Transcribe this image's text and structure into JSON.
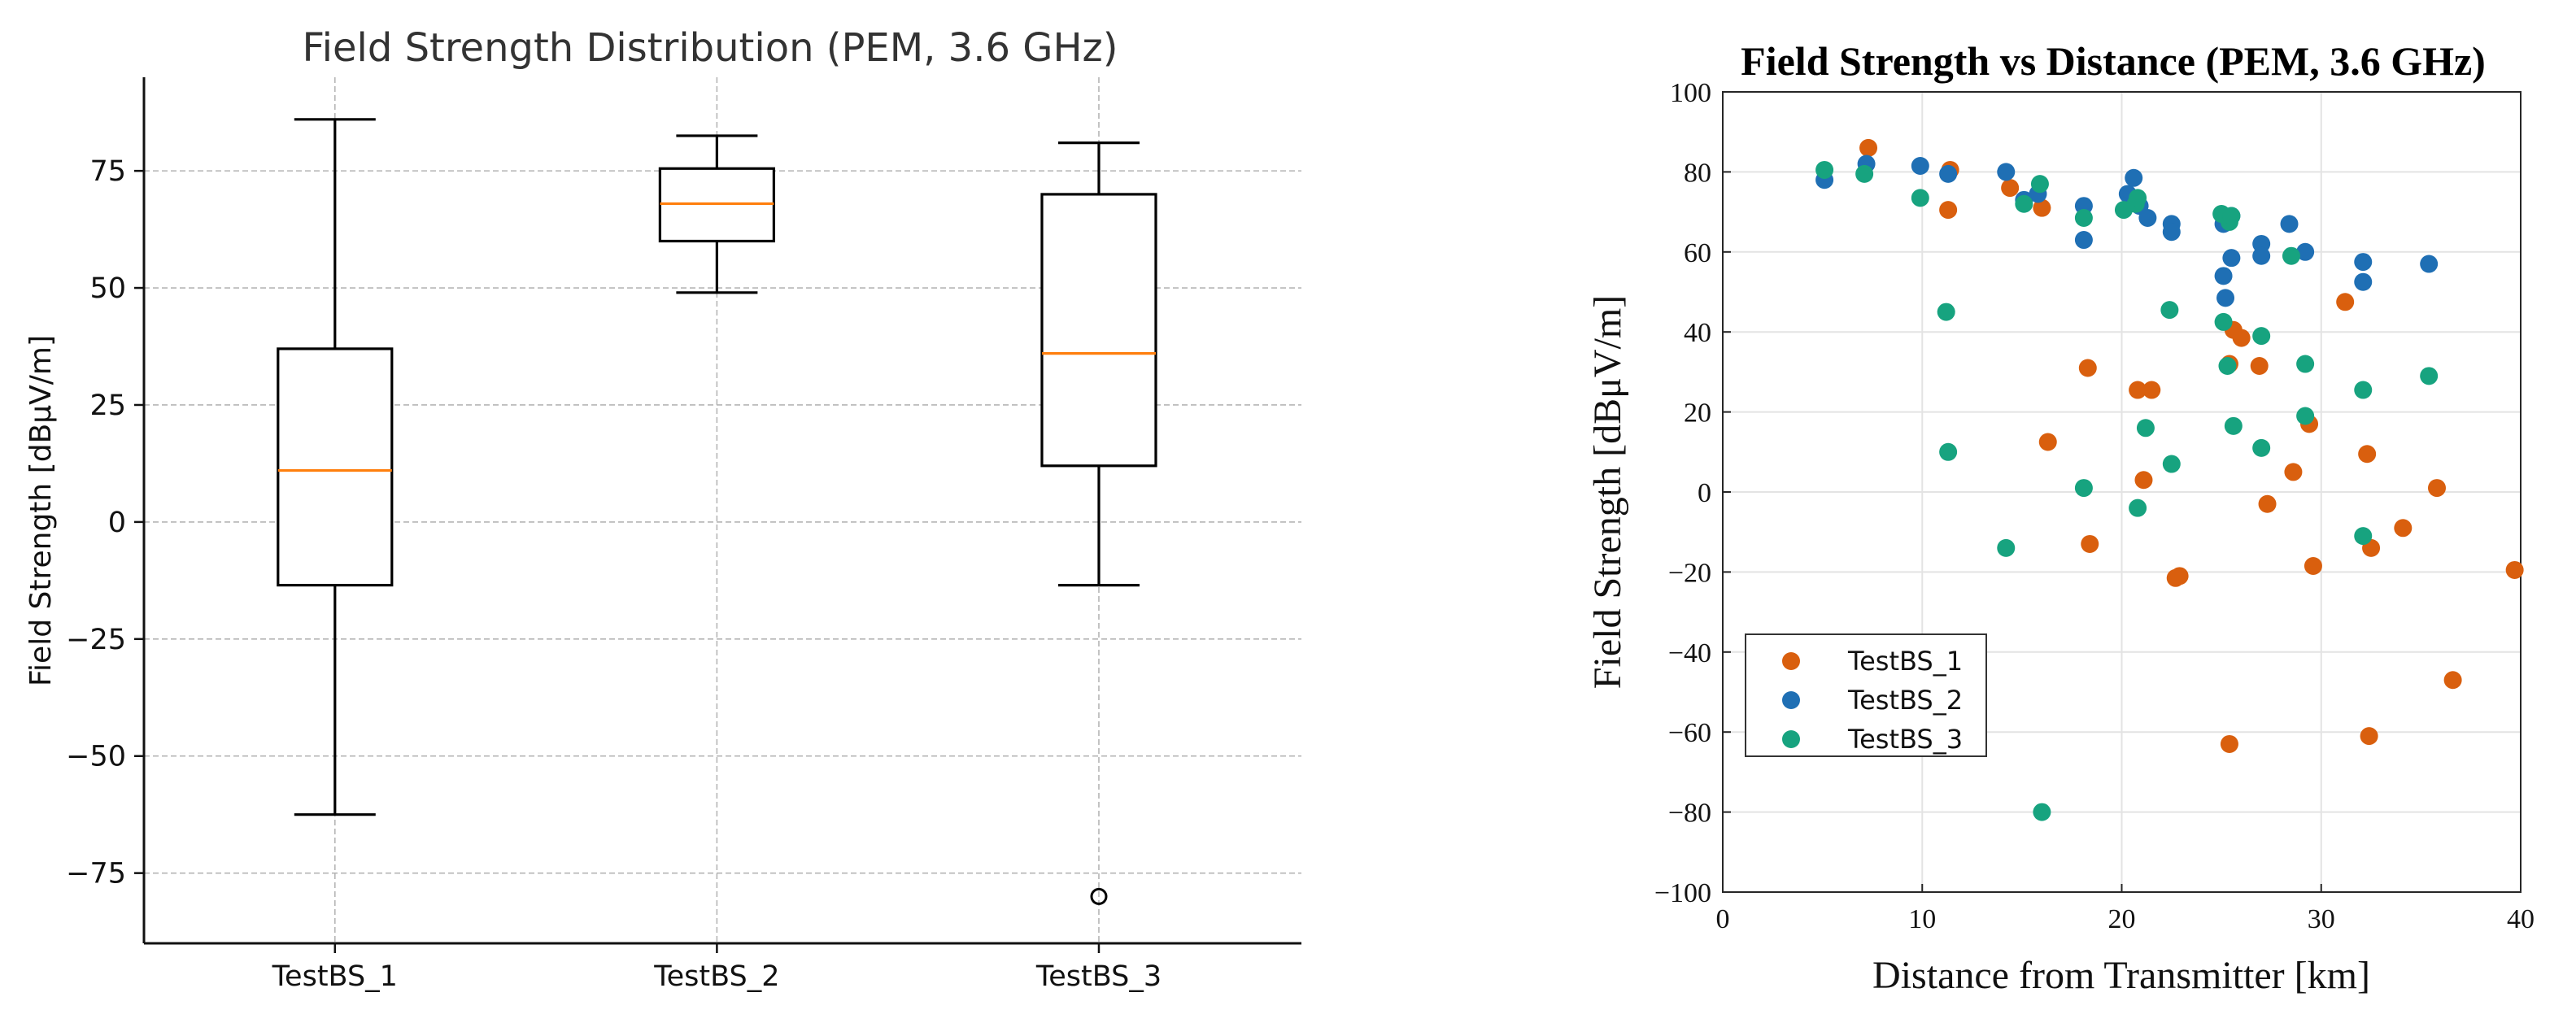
{
  "chart_data": [
    {
      "type": "box",
      "title": "Field Strength Distribution (PEM, 3.6 GHz)",
      "xlabel": "",
      "ylabel": "Field Strength [dBµV/m]",
      "ylim": [
        -90,
        95
      ],
      "yticks": [
        -75,
        -50,
        -25,
        0,
        25,
        50,
        75
      ],
      "ytick_labels": [
        "−75",
        "−50",
        "−25",
        "0",
        "25",
        "50",
        "75"
      ],
      "grid": true,
      "categories": [
        "TestBS_1",
        "TestBS_2",
        "TestBS_3"
      ],
      "boxes": [
        {
          "name": "TestBS_1",
          "whisker_low": -62.5,
          "q1": -13.5,
          "median": 11,
          "q3": 37,
          "whisker_high": 86,
          "outliers": []
        },
        {
          "name": "TestBS_2",
          "whisker_low": 49,
          "q1": 60,
          "median": 68,
          "q3": 75.5,
          "whisker_high": 82.5,
          "outliers": []
        },
        {
          "name": "TestBS_3",
          "whisker_low": -13.5,
          "q1": 12,
          "median": 36,
          "q3": 70,
          "whisker_high": 81,
          "outliers": [
            -80
          ]
        }
      ]
    },
    {
      "type": "scatter",
      "title": "Field Strength vs Distance (PEM, 3.6 GHz)",
      "xlabel": "Distance from Transmitter [km]",
      "ylabel": "Field Strength [dBμV/m]",
      "xlim": [
        0,
        40
      ],
      "ylim": [
        -100,
        100
      ],
      "xticks": [
        0,
        10,
        20,
        30,
        40
      ],
      "yticks": [
        -100,
        -80,
        -60,
        -40,
        -20,
        0,
        20,
        40,
        60,
        80,
        100
      ],
      "ytick_labels": [
        "−100",
        "−80",
        "−60",
        "−40",
        "−20",
        "0",
        "20",
        "40",
        "60",
        "80",
        "100"
      ],
      "grid": true,
      "legend_position": "lower-left",
      "series": [
        {
          "name": "TestBS_1",
          "color": "#D95F0E",
          "points": [
            [
              7.3,
              86
            ],
            [
              11.4,
              80.5
            ],
            [
              11.3,
              70.5
            ],
            [
              14.4,
              76
            ],
            [
              16,
              71
            ],
            [
              18.3,
              31
            ],
            [
              16.3,
              12.5
            ],
            [
              18.4,
              -13
            ],
            [
              20.8,
              25.5
            ],
            [
              21.5,
              25.5
            ],
            [
              21.1,
              3
            ],
            [
              22.7,
              -21.5
            ],
            [
              22.9,
              -21
            ],
            [
              25.4,
              32
            ],
            [
              25.6,
              40.5
            ],
            [
              26,
              38.5
            ],
            [
              26.9,
              31.5
            ],
            [
              25.4,
              -63
            ],
            [
              27.3,
              -3
            ],
            [
              28.6,
              5
            ],
            [
              29.4,
              17
            ],
            [
              29.6,
              -18.5
            ],
            [
              31.2,
              47.5
            ],
            [
              32.3,
              9.5
            ],
            [
              32.5,
              -14
            ],
            [
              32.4,
              -61
            ],
            [
              34.1,
              -9
            ],
            [
              35.8,
              1
            ],
            [
              36.6,
              -47
            ],
            [
              39.7,
              -19.5
            ]
          ]
        },
        {
          "name": "TestBS_2",
          "color": "#1F6FB4",
          "points": [
            [
              5.1,
              78
            ],
            [
              7.2,
              82
            ],
            [
              9.9,
              81.5
            ],
            [
              11.3,
              79.5
            ],
            [
              14.2,
              80
            ],
            [
              15.1,
              73
            ],
            [
              15.8,
              74.5
            ],
            [
              18.1,
              71.5
            ],
            [
              18.1,
              63
            ],
            [
              20.3,
              74.5
            ],
            [
              20.6,
              78.5
            ],
            [
              20.9,
              71.5
            ],
            [
              21.3,
              68.5
            ],
            [
              22.5,
              67
            ],
            [
              22.5,
              65
            ],
            [
              25.1,
              67
            ],
            [
              25.1,
              54
            ],
            [
              25.2,
              48.5
            ],
            [
              25.5,
              58.5
            ],
            [
              25.5,
              69
            ],
            [
              27,
              62
            ],
            [
              27,
              59
            ],
            [
              28.4,
              67
            ],
            [
              29.2,
              60
            ],
            [
              32.1,
              57.5
            ],
            [
              32.1,
              52.5
            ],
            [
              35.4,
              57
            ]
          ]
        },
        {
          "name": "TestBS_3",
          "color": "#17A37F",
          "points": [
            [
              5.1,
              80.5
            ],
            [
              7.1,
              79.5
            ],
            [
              9.9,
              73.5
            ],
            [
              11.2,
              45
            ],
            [
              11.3,
              10
            ],
            [
              14.2,
              -14
            ],
            [
              15.1,
              72
            ],
            [
              15.9,
              77
            ],
            [
              16,
              -80
            ],
            [
              18.1,
              68.5
            ],
            [
              18.1,
              1
            ],
            [
              20.1,
              70.5
            ],
            [
              20.7,
              72
            ],
            [
              20.8,
              73.5
            ],
            [
              20.8,
              -4
            ],
            [
              21.2,
              16
            ],
            [
              22.4,
              45.5
            ],
            [
              22.5,
              7
            ],
            [
              25,
              69.5
            ],
            [
              25.1,
              42.5
            ],
            [
              25.3,
              31.5
            ],
            [
              25.4,
              67.5
            ],
            [
              25.5,
              69
            ],
            [
              25.6,
              16.5
            ],
            [
              27,
              39
            ],
            [
              27,
              11
            ],
            [
              28.5,
              59
            ],
            [
              29.2,
              32
            ],
            [
              29.2,
              19
            ],
            [
              32.1,
              -11
            ],
            [
              32.1,
              25.5
            ],
            [
              35.4,
              29
            ]
          ]
        }
      ]
    }
  ]
}
